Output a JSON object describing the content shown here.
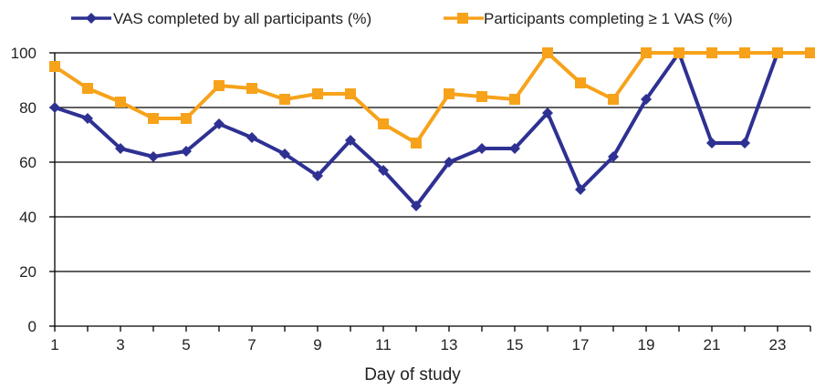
{
  "chart_data": {
    "type": "line",
    "xlabel": "Day of study",
    "ylabel": "",
    "xlim": [
      1,
      24
    ],
    "ylim": [
      0,
      100
    ],
    "x_ticks": [
      "1",
      "3",
      "5",
      "7",
      "9",
      "11",
      "13",
      "15",
      "17",
      "19",
      "21",
      "23"
    ],
    "y_ticks": [
      "0",
      "20",
      "40",
      "60",
      "80",
      "100"
    ],
    "grid": true,
    "legend_position": "top",
    "x": [
      1,
      2,
      3,
      4,
      5,
      6,
      7,
      8,
      9,
      10,
      11,
      12,
      13,
      14,
      15,
      16,
      17,
      18,
      19,
      20,
      21,
      22,
      23,
      24
    ],
    "series": [
      {
        "name": "VAS completed by all participants (%)",
        "color": "#2e3192",
        "marker": "diamond",
        "values": [
          80,
          76,
          65,
          62,
          64,
          74,
          69,
          63,
          55,
          68,
          57,
          44,
          60,
          65,
          65,
          78,
          50,
          62,
          83,
          100,
          67,
          67,
          100,
          100
        ]
      },
      {
        "name": "Participants completing ≥ 1 VAS (%)",
        "color": "#f7a21b",
        "marker": "square",
        "values": [
          95,
          87,
          82,
          76,
          76,
          88,
          87,
          83,
          85,
          85,
          74,
          67,
          85,
          84,
          83,
          100,
          89,
          83,
          100,
          100,
          100,
          100,
          100,
          100
        ]
      }
    ]
  }
}
